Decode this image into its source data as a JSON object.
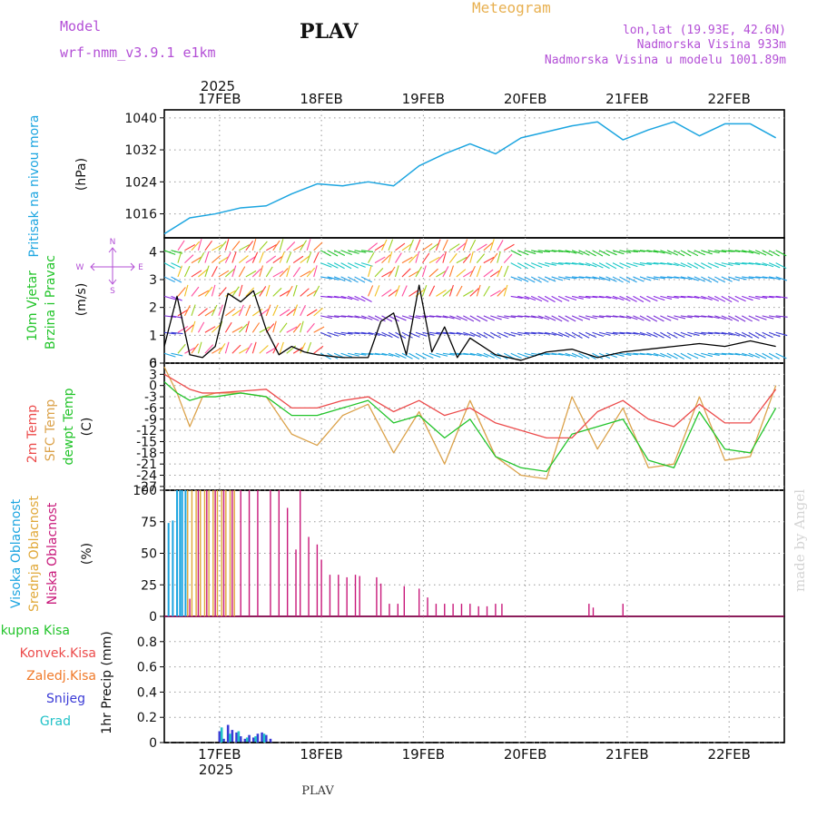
{
  "header": {
    "model_label": "Model",
    "model_name": "wrf-nmm_v3.9.1 e1km",
    "station": "PLAV",
    "title": "Meteogram",
    "location": "lon,lat (19.93E, 42.6N)",
    "elevation": "Nadmorska Visina 933m",
    "model_elevation": "Nadmorska Visina u modelu 1001.89m",
    "footer_station": "PLAV",
    "credit": "made by Angel"
  },
  "time_axis": {
    "year": "2025",
    "day_labels": [
      "17FEB",
      "18FEB",
      "19FEB",
      "20FEB",
      "21FEB",
      "22FEB"
    ]
  },
  "colors": {
    "pressure": "#1ca5e0",
    "wind_speed": "#000000",
    "temp_2m": "#ec4b4b",
    "temp_sfc": "#dba24a",
    "dewpoint": "#22c42a",
    "cloud_high": "#1ca5e0",
    "cloud_mid": "#e0a838",
    "cloud_low": "#c8187a",
    "precip_total": "#22c42a",
    "precip_conv": "#ec4b4b",
    "precip_frz": "#f07a2a",
    "snow": "#3b3bd6",
    "graupel": "#22c2c8",
    "label_magenta": "#b34fd6",
    "title_orange": "#e8b050"
  },
  "chart_data": [
    {
      "type": "line",
      "panel": "pressure",
      "ylabel_name": "Pritisak na nivou mora",
      "ylabel_unit": "(hPa)",
      "ylim": [
        1010,
        1042
      ],
      "yticks": [
        "1040",
        "1032",
        "1024",
        "1016"
      ],
      "ytick_values": [
        1040,
        1032,
        1024,
        1016
      ],
      "x_hours": [
        0,
        6,
        12,
        18,
        24,
        30,
        36,
        42,
        48,
        54,
        60,
        66,
        72,
        78,
        84,
        90,
        96,
        102,
        108,
        114,
        120,
        126,
        132,
        138,
        144
      ],
      "series": [
        {
          "values": [
            1011,
            1015,
            1016,
            1017.5,
            1018,
            1021,
            1023.5,
            1023,
            1024,
            1023,
            1028,
            1031,
            1033.5,
            1031,
            1035,
            1036.5,
            1038,
            1039,
            1034.5,
            1037,
            1039,
            1035.5,
            1038.5,
            1038.5,
            1035
          ]
        }
      ]
    },
    {
      "type": "line",
      "panel": "wind",
      "ylabel_name": "10m Vjetar",
      "ylabel_sub": "Brzina i Pravac",
      "ylabel_unit": "(m/s)",
      "compass": {
        "n": "N",
        "s": "S",
        "e": "E",
        "w": "W"
      },
      "ylim": [
        0,
        4.5
      ],
      "yticks": [
        "4",
        "3",
        "2",
        "1",
        "0"
      ],
      "ytick_values": [
        4,
        3,
        2,
        1,
        0
      ],
      "x_hours": [
        0,
        3,
        6,
        9,
        12,
        15,
        18,
        21,
        24,
        27,
        30,
        33,
        36,
        42,
        48,
        51,
        54,
        57,
        60,
        63,
        66,
        69,
        72,
        78,
        84,
        90,
        96,
        102,
        108,
        114,
        120,
        126,
        132,
        138,
        144
      ],
      "series": [
        {
          "name": "speed",
          "values": [
            0.6,
            2.4,
            0.3,
            0.2,
            0.6,
            2.5,
            2.2,
            2.6,
            1.2,
            0.3,
            0.6,
            0.4,
            0.3,
            0.2,
            0.2,
            1.5,
            1.8,
            0.3,
            2.8,
            0.4,
            1.3,
            0.2,
            0.9,
            0.3,
            0.1,
            0.4,
            0.5,
            0.2,
            0.4,
            0.5,
            0.6,
            0.7,
            0.6,
            0.8,
            0.6
          ]
        }
      ]
    },
    {
      "type": "line",
      "panel": "temperature",
      "ylabel_name": "2m Temp",
      "ylabel_sfc": "SFC Temp",
      "ylabel_dew": "dewpt Temp",
      "ylabel_unit": "(C)",
      "ylim": [
        -28,
        6
      ],
      "yticks": [
        "6",
        "3",
        "0",
        "-3",
        "-6",
        "-9",
        "-12",
        "-15",
        "-18",
        "-21",
        "-24",
        "-27"
      ],
      "ytick_values": [
        6,
        3,
        0,
        -3,
        -6,
        -9,
        -12,
        -15,
        -18,
        -21,
        -24,
        -27
      ],
      "x_hours": [
        0,
        3,
        6,
        9,
        12,
        18,
        24,
        30,
        36,
        42,
        48,
        54,
        60,
        66,
        72,
        78,
        84,
        90,
        96,
        102,
        108,
        114,
        120,
        126,
        132,
        138,
        144
      ],
      "series": [
        {
          "name": "2m Temp",
          "values": [
            3,
            1,
            -1,
            -2,
            -2,
            -1.5,
            -1,
            -6,
            -6,
            -4,
            -3,
            -7,
            -4,
            -8,
            -6,
            -10,
            -12,
            -14,
            -14,
            -7,
            -4,
            -9,
            -11,
            -5,
            -10,
            -10,
            -1
          ]
        },
        {
          "name": "SFC Temp",
          "values": [
            5,
            -2,
            -11,
            -3,
            -2,
            -2,
            -3,
            -13,
            -16,
            -8,
            -5,
            -18,
            -7,
            -21,
            -4,
            -19,
            -24,
            -25,
            -3,
            -17,
            -6,
            -22,
            -21,
            -3,
            -20,
            -19,
            0
          ]
        },
        {
          "name": "dewpt Temp",
          "values": [
            1,
            -2,
            -4,
            -3,
            -3,
            -2,
            -3,
            -8,
            -8,
            -6,
            -4,
            -10,
            -8,
            -14,
            -9,
            -19,
            -22,
            -23,
            -13,
            -11,
            -9,
            -20,
            -22,
            -7,
            -17,
            -18,
            -6
          ]
        }
      ]
    },
    {
      "type": "bar",
      "panel": "clouds",
      "ylabel_high": "Visoka Oblacnost",
      "ylabel_mid": "Srednja Oblacnost",
      "ylabel_low": "Niska Oblacnost",
      "ylabel_unit": "(%)",
      "ylim": [
        0,
        100
      ],
      "yticks": [
        "100",
        "75",
        "50",
        "25",
        "0"
      ],
      "ytick_values": [
        100,
        75,
        50,
        25,
        0
      ],
      "series": [
        {
          "name": "Visoka Oblacnost",
          "x_hours": [
            1,
            2,
            3,
            3.7,
            4.2,
            5
          ],
          "values": [
            74,
            76,
            100,
            100,
            100,
            100
          ]
        },
        {
          "name": "Srednja Oblacnost",
          "x_hours": [
            5.5,
            6.5,
            7.5,
            8.5,
            9.5,
            10.5,
            11.5,
            12.5,
            13.5,
            14.5,
            15.5,
            16.5
          ],
          "values": [
            100,
            100,
            100,
            100,
            100,
            100,
            100,
            100,
            100,
            100,
            100,
            100
          ]
        },
        {
          "name": "Niska Oblacnost",
          "x_hours": [
            6,
            8,
            10,
            12,
            14,
            16,
            18,
            20,
            22,
            25,
            27,
            29,
            31,
            32,
            34,
            36,
            37,
            39,
            41,
            43,
            45,
            46,
            50,
            51,
            53,
            55,
            56.5,
            60,
            62,
            64,
            66,
            68,
            70,
            72,
            74,
            76,
            78,
            79.5,
            100,
            101,
            108
          ],
          "values": [
            14,
            100,
            100,
            100,
            100,
            100,
            100,
            100,
            100,
            100,
            100,
            86,
            53,
            100,
            63,
            57,
            45,
            33,
            33,
            31,
            33,
            32,
            31,
            26,
            10,
            10,
            24,
            22,
            15,
            10,
            10,
            10,
            10,
            10,
            8,
            8,
            10,
            10,
            10,
            7,
            10
          ]
        }
      ]
    },
    {
      "type": "bar",
      "panel": "precipitation",
      "ylabel_total": "Ukupna Kisa",
      "ylabel_conv": "Konvek.Kisa",
      "ylabel_frz": "Zaledj.Kisa",
      "ylabel_snow": "Snijeg",
      "ylabel_graupel": "Grad",
      "ylabel_unit": "1hr Precip (mm)",
      "ylim": [
        0,
        1.0
      ],
      "yticks": [
        "0.8",
        "0.6",
        "0.4",
        "0.2",
        "0"
      ],
      "ytick_values": [
        0.8,
        0.6,
        0.4,
        0.2,
        0
      ],
      "series": [
        {
          "name": "Snijeg",
          "x_hours": [
            13,
            14,
            15,
            16,
            17,
            18,
            19,
            20,
            21,
            22,
            23,
            24,
            25
          ],
          "values": [
            0.09,
            0.03,
            0.14,
            0.1,
            0.08,
            0.05,
            0.03,
            0.06,
            0.04,
            0.07,
            0.08,
            0.06,
            0.03
          ]
        },
        {
          "name": "Grad",
          "x_hours": [
            13.5,
            15.5,
            17.5,
            19.5,
            21.5,
            23.5
          ],
          "values": [
            0.12,
            0.07,
            0.09,
            0.04,
            0.05,
            0.07
          ]
        }
      ]
    }
  ]
}
